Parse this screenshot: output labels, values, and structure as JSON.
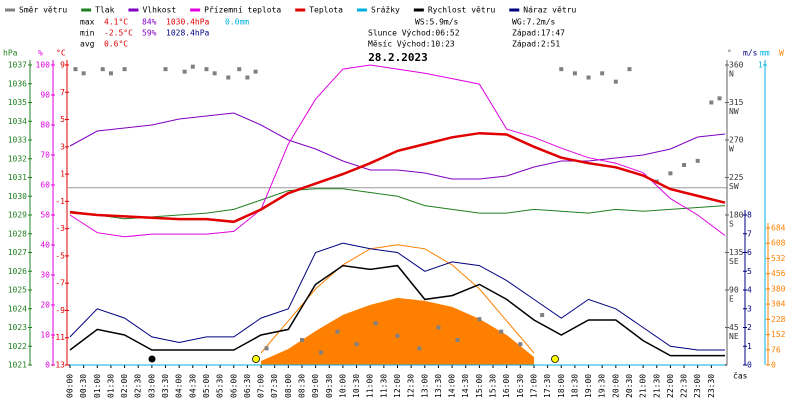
{
  "chart_data": {
    "type": "line",
    "title": "28.2.2023",
    "xlabel": "čas",
    "xlim": [
      0,
      24
    ],
    "xticks": [
      {
        "value": 0,
        "label": "00:00"
      },
      {
        "value": 0.5,
        "label": "00:30"
      },
      {
        "value": 1,
        "label": "01:00"
      },
      {
        "value": 1.5,
        "label": "01:30"
      },
      {
        "value": 2,
        "label": "02:00"
      },
      {
        "value": 2.5,
        "label": "02:30"
      },
      {
        "value": 3,
        "label": "03:00"
      },
      {
        "value": 3.5,
        "label": "03:30"
      },
      {
        "value": 4,
        "label": "04:00"
      },
      {
        "value": 4.5,
        "label": "04:30"
      },
      {
        "value": 5,
        "label": "05:00"
      },
      {
        "value": 5.5,
        "label": "05:30"
      },
      {
        "value": 6,
        "label": "06:00"
      },
      {
        "value": 6.5,
        "label": "06:30"
      },
      {
        "value": 7,
        "label": "07:00"
      },
      {
        "value": 7.5,
        "label": "07:30"
      },
      {
        "value": 8,
        "label": "08:00"
      },
      {
        "value": 8.5,
        "label": "08:30"
      },
      {
        "value": 9,
        "label": "09:00"
      },
      {
        "value": 9.5,
        "label": "09:30"
      },
      {
        "value": 10,
        "label": "10:00"
      },
      {
        "value": 10.5,
        "label": "10:30"
      },
      {
        "value": 11,
        "label": "11:00"
      },
      {
        "value": 11.5,
        "label": "11:30"
      },
      {
        "value": 12,
        "label": "12:00"
      },
      {
        "value": 12.5,
        "label": "12:30"
      },
      {
        "value": 13,
        "label": "13:00"
      },
      {
        "value": 13.5,
        "label": "13:30"
      },
      {
        "value": 14,
        "label": "14:00"
      },
      {
        "value": 14.5,
        "label": "14:30"
      },
      {
        "value": 15,
        "label": "15:00"
      },
      {
        "value": 15.5,
        "label": "15:30"
      },
      {
        "value": 16,
        "label": "16:00"
      },
      {
        "value": 16.5,
        "label": "16:30"
      },
      {
        "value": 17,
        "label": "17:00"
      },
      {
        "value": 17.5,
        "label": "17:30"
      },
      {
        "value": 18,
        "label": "18:00"
      },
      {
        "value": 18.5,
        "label": "18:30"
      },
      {
        "value": 19,
        "label": "19:00"
      },
      {
        "value": 19.5,
        "label": "19:30"
      },
      {
        "value": 20,
        "label": "20:00"
      },
      {
        "value": 20.5,
        "label": "20:30"
      },
      {
        "value": 21,
        "label": "21:00"
      },
      {
        "value": 21.5,
        "label": "21:30"
      },
      {
        "value": 22,
        "label": "22:00"
      },
      {
        "value": 22.5,
        "label": "22:30"
      },
      {
        "value": 23,
        "label": "23:00"
      },
      {
        "value": 23.5,
        "label": "23:30"
      }
    ],
    "x": [
      0,
      1,
      2,
      3,
      4,
      5,
      6,
      7,
      8,
      9,
      10,
      11,
      12,
      13,
      14,
      15,
      16,
      17,
      18,
      19,
      20,
      21,
      22,
      23,
      24
    ],
    "axes": {
      "hpa": {
        "label": "hPa",
        "color": "#208020",
        "lim": [
          1021,
          1037
        ],
        "ticks": [
          1021,
          1022,
          1023,
          1024,
          1025,
          1026,
          1027,
          1028,
          1029,
          1030,
          1031,
          1032,
          1033,
          1034,
          1035,
          1036,
          1037
        ]
      },
      "pct": {
        "label": "%",
        "color": "#e000e0",
        "lim": [
          0,
          100
        ],
        "ticks": [
          0,
          10,
          20,
          30,
          40,
          50,
          60,
          70,
          80,
          90,
          100
        ]
      },
      "temp": {
        "label": "°C",
        "color": "#e00000",
        "lim": [
          -13,
          9
        ],
        "ticks": [
          -13,
          -11,
          -9,
          -7,
          -5,
          -3,
          -1,
          1,
          3,
          5,
          7,
          9
        ],
        "zero_line": true
      },
      "dir": {
        "label": "°",
        "color": "#606060",
        "lim": [
          0,
          360
        ],
        "ticks": [
          {
            "value": 45,
            "label": "45",
            "dir": "NE"
          },
          {
            "value": 90,
            "label": "90",
            "dir": "E"
          },
          {
            "value": 135,
            "label": "135",
            "dir": "SE"
          },
          {
            "value": 180,
            "label": "180",
            "dir": "S"
          },
          {
            "value": 225,
            "label": "225",
            "dir": "SW"
          },
          {
            "value": 270,
            "label": "270",
            "dir": "W"
          },
          {
            "value": 315,
            "label": "315",
            "dir": "NW"
          },
          {
            "value": 360,
            "label": "360",
            "dir": "N"
          }
        ]
      },
      "ms": {
        "label": "m/s",
        "color": "#000080",
        "lim": [
          0,
          8
        ],
        "ticks": [
          0,
          1,
          2,
          3,
          4,
          5,
          6,
          7,
          8
        ]
      },
      "mm": {
        "label": "mm",
        "color": "#00b0e0",
        "lim": [
          0,
          1
        ],
        "ticks": [
          1
        ]
      },
      "solar": {
        "label": "W",
        "color": "#ff8000",
        "lim": [
          0,
          684
        ],
        "ticks": [
          0,
          76,
          152,
          228,
          304,
          380,
          456,
          532,
          608,
          684
        ]
      }
    },
    "series": [
      {
        "style": "area",
        "axis": "solar",
        "color": "#ff8000",
        "values": [
          null,
          null,
          null,
          null,
          null,
          null,
          null,
          20,
          80,
          170,
          250,
          300,
          335,
          320,
          290,
          230,
          150,
          40,
          null,
          null,
          null,
          null,
          null,
          null,
          null
        ]
      },
      {
        "style": "line",
        "axis": "solar",
        "color": "#ff8000",
        "values": [
          null,
          null,
          null,
          null,
          null,
          null,
          null,
          60,
          220,
          380,
          500,
          580,
          600,
          580,
          500,
          380,
          220,
          60,
          null,
          null,
          null,
          null,
          null,
          null,
          null
        ]
      },
      {
        "name": "Směr větru",
        "style": "scatter",
        "axis": "dir",
        "color": "#808080",
        "x": [
          0.2,
          0.5,
          1.2,
          1.5,
          2.0,
          3.5,
          4.2,
          4.5,
          5.0,
          5.3,
          5.8,
          6.2,
          6.5,
          6.8,
          7.2,
          8.5,
          9.2,
          9.8,
          10.5,
          11.2,
          12.0,
          12.8,
          13.5,
          14.2,
          15.0,
          15.8,
          16.5,
          17.3,
          18.0,
          18.5,
          19.0,
          19.5,
          20.0,
          20.5,
          21.5,
          22.0,
          22.5,
          23.0,
          23.5,
          23.8
        ],
        "values": [
          355,
          350,
          355,
          350,
          355,
          355,
          352,
          358,
          355,
          350,
          345,
          355,
          345,
          352,
          20,
          30,
          15,
          40,
          25,
          50,
          35,
          20,
          45,
          30,
          55,
          40,
          25,
          60,
          355,
          350,
          345,
          350,
          340,
          355,
          220,
          230,
          240,
          245,
          315,
          320
        ]
      },
      {
        "name": "Tlak",
        "style": "line",
        "axis": "hpa",
        "color": "#208020",
        "values": [
          1029.2,
          1029.0,
          1028.8,
          1028.9,
          1029.0,
          1029.1,
          1029.3,
          1029.8,
          1030.3,
          1030.4,
          1030.4,
          1030.2,
          1030.0,
          1029.5,
          1029.3,
          1029.1,
          1029.1,
          1029.3,
          1029.2,
          1029.1,
          1029.3,
          1029.2,
          1029.3,
          1029.4,
          1029.5
        ]
      },
      {
        "name": "Vlhkost",
        "style": "line",
        "axis": "pct",
        "color": "#8000c0",
        "values": [
          73,
          78,
          79,
          80,
          82,
          83,
          84,
          80,
          75,
          72,
          68,
          65,
          65,
          64,
          62,
          62,
          63,
          66,
          68,
          68,
          69,
          70,
          72,
          76,
          77
        ]
      },
      {
        "name": "Přízemní teplota",
        "style": "line",
        "axis": "temp",
        "color": "#e000e0",
        "values": [
          -2.0,
          -3.3,
          -3.6,
          -3.4,
          -3.4,
          -3.4,
          -3.2,
          -1.6,
          3.2,
          6.5,
          8.7,
          9.0,
          8.7,
          8.4,
          8.0,
          7.6,
          4.3,
          3.7,
          2.9,
          2.2,
          1.8,
          1.1,
          -0.8,
          -2.0,
          -3.5
        ]
      },
      {
        "name": "Teplota",
        "style": "line",
        "axis": "temp",
        "color": "#e00000",
        "width": 2.5,
        "values": [
          -1.8,
          -2.0,
          -2.1,
          -2.2,
          -2.3,
          -2.3,
          -2.5,
          -1.6,
          -0.4,
          0.3,
          1.0,
          1.8,
          2.7,
          3.2,
          3.7,
          4.0,
          3.9,
          3.0,
          2.2,
          1.8,
          1.5,
          0.9,
          -0.1,
          -0.6,
          -1.1
        ]
      },
      {
        "name": "Srážky",
        "style": "line",
        "axis": "mm",
        "color": "#00b0e0",
        "values": [
          0,
          0,
          0,
          0,
          0,
          0,
          0,
          0,
          0,
          0,
          0,
          0,
          0,
          0,
          0,
          0,
          0,
          0,
          0,
          0,
          0,
          0,
          0,
          0,
          0
        ]
      },
      {
        "name": "Rychlost větru",
        "style": "line",
        "axis": "ms",
        "color": "#000000",
        "width": 1.5,
        "values": [
          0.8,
          1.9,
          1.6,
          0.8,
          0.8,
          0.8,
          0.8,
          1.6,
          1.9,
          4.3,
          5.3,
          5.1,
          5.3,
          3.5,
          3.7,
          4.3,
          3.5,
          2.4,
          1.6,
          2.4,
          2.4,
          1.3,
          0.5,
          0.5,
          0.5
        ]
      },
      {
        "name": "Náraz větru",
        "style": "line",
        "axis": "ms",
        "color": "#000080",
        "values": [
          1.5,
          3.0,
          2.5,
          1.5,
          1.2,
          1.5,
          1.5,
          2.5,
          3.0,
          6.0,
          6.5,
          6.2,
          6.0,
          5.0,
          5.5,
          5.3,
          4.5,
          3.5,
          2.5,
          3.5,
          3.0,
          2.0,
          1.0,
          0.8,
          0.8
        ]
      }
    ],
    "stats": [
      {
        "label": "max",
        "temp": "4.1°C",
        "hum": "84%",
        "press": "1030.4hPa",
        "rain": "0.0mm"
      },
      {
        "label": "min",
        "temp": "-2.5°C",
        "hum": "59%",
        "press": "1028.4hPa"
      },
      {
        "label": "avg",
        "temp": "0.6°C"
      }
    ],
    "info": {
      "ws": "WS:5.9m/s",
      "wg": "WG:7.2m/s",
      "sun": "Slunce Východ:06:52",
      "sun_set": "Západ:17:47",
      "moon": "Měsíc Východ:10:23",
      "moon_set": "Západ:2:51"
    }
  }
}
